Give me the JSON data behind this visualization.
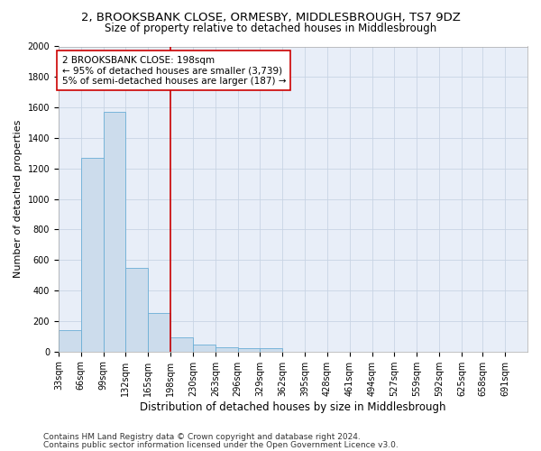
{
  "title1": "2, BROOKSBANK CLOSE, ORMESBY, MIDDLESBROUGH, TS7 9DZ",
  "title2": "Size of property relative to detached houses in Middlesbrough",
  "xlabel": "Distribution of detached houses by size in Middlesbrough",
  "ylabel": "Number of detached properties",
  "footnote1": "Contains HM Land Registry data © Crown copyright and database right 2024.",
  "footnote2": "Contains public sector information licensed under the Open Government Licence v3.0.",
  "annotation_line1": "2 BROOKSBANK CLOSE: 198sqm",
  "annotation_line2": "← 95% of detached houses are smaller (3,739)",
  "annotation_line3": "5% of semi-detached houses are larger (187) →",
  "bar_left_edges": [
    33,
    66,
    99,
    132,
    165,
    198,
    231,
    264,
    297,
    330,
    363,
    396,
    429,
    462,
    495,
    528,
    561,
    594,
    627,
    658
  ],
  "bar_heights": [
    140,
    1270,
    1570,
    550,
    250,
    95,
    45,
    30,
    20,
    20,
    0,
    0,
    0,
    0,
    0,
    0,
    0,
    0,
    0,
    0
  ],
  "bin_width": 33,
  "tick_labels": [
    "33sqm",
    "66sqm",
    "99sqm",
    "132sqm",
    "165sqm",
    "198sqm",
    "230sqm",
    "263sqm",
    "296sqm",
    "329sqm",
    "362sqm",
    "395sqm",
    "428sqm",
    "461sqm",
    "494sqm",
    "527sqm",
    "559sqm",
    "592sqm",
    "625sqm",
    "658sqm",
    "691sqm"
  ],
  "bar_color": "#ccdcec",
  "bar_edge_color": "#6baed6",
  "vline_x": 198,
  "vline_color": "#cc0000",
  "vline_linewidth": 1.2,
  "annotation_box_color": "#cc0000",
  "annotation_box_facecolor": "white",
  "ylim": [
    0,
    2000
  ],
  "yticks": [
    0,
    200,
    400,
    600,
    800,
    1000,
    1200,
    1400,
    1600,
    1800,
    2000
  ],
  "grid_color": "#c8d4e4",
  "background_color": "#e8eef8",
  "title1_fontsize": 9.5,
  "title2_fontsize": 8.5,
  "xlabel_fontsize": 8.5,
  "ylabel_fontsize": 8,
  "tick_fontsize": 7,
  "annotation_fontsize": 7.5,
  "footnote_fontsize": 6.5
}
